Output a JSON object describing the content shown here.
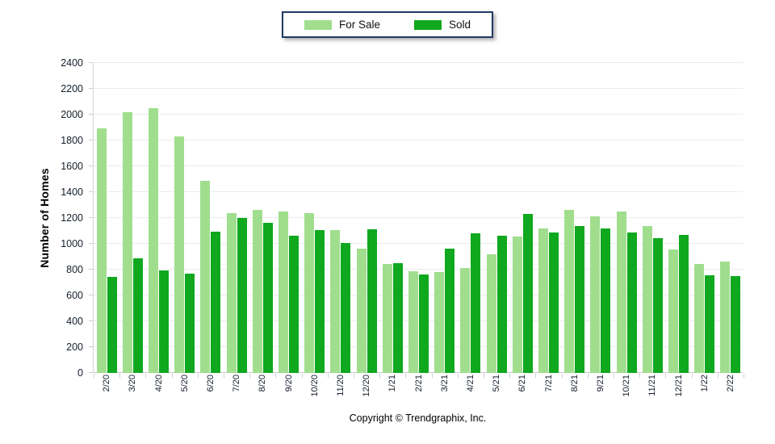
{
  "legend": {
    "items": [
      {
        "label": "For Sale",
        "color": "#a0de8e"
      },
      {
        "label": "Sold",
        "color": "#0fa81e"
      }
    ]
  },
  "footer": {
    "copyright": "Copyright © Trendgraphix, Inc."
  },
  "chart_data": {
    "type": "bar",
    "title": "",
    "xlabel": "",
    "ylabel": "Number of Homes",
    "ylim": [
      0,
      2400
    ],
    "ytick_step": 200,
    "grid": true,
    "legend_position": "top-center",
    "categories": [
      "2/20",
      "3/20",
      "4/20",
      "5/20",
      "6/20",
      "7/20",
      "8/20",
      "9/20",
      "10/20",
      "11/20",
      "12/20",
      "1/21",
      "2/21",
      "3/21",
      "4/21",
      "5/21",
      "6/21",
      "7/21",
      "8/21",
      "9/21",
      "10/21",
      "11/21",
      "12/21",
      "1/22",
      "2/22"
    ],
    "series": [
      {
        "name": "For Sale",
        "color": "#a0de8e",
        "values": [
          1895,
          2020,
          2050,
          1830,
          1485,
          1240,
          1260,
          1250,
          1240,
          1105,
          960,
          845,
          790,
          780,
          810,
          920,
          1055,
          1120,
          1265,
          1215,
          1250,
          1140,
          955,
          845,
          865
        ]
      },
      {
        "name": "Sold",
        "color": "#0fa81e",
        "values": [
          745,
          890,
          795,
          770,
          1095,
          1200,
          1160,
          1065,
          1105,
          1005,
          1115,
          850,
          765,
          960,
          1080,
          1060,
          1230,
          1090,
          1135,
          1120,
          1085,
          1045,
          1070,
          755,
          750
        ]
      }
    ],
    "colors": {
      "grid": "#ececec",
      "axis": "#c9c9c9",
      "tick_text": "#141e2a"
    }
  }
}
